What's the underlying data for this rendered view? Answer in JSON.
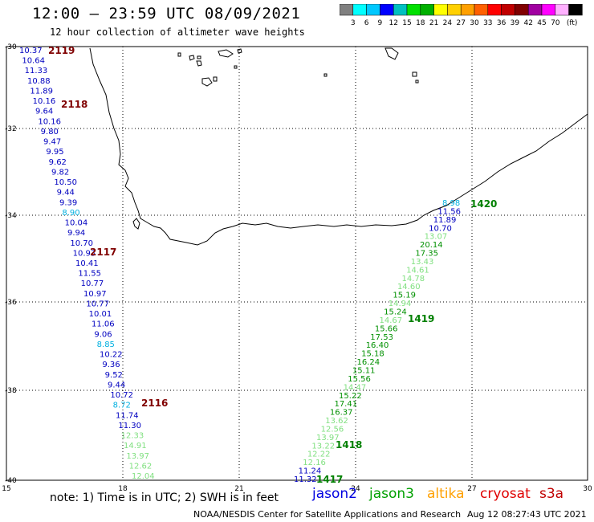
{
  "header": {
    "title": "12:00 — 23:59 UTC 08/09/2021",
    "subtitle": "12 hour collection of altimeter wave heights"
  },
  "color_scale": {
    "unit": "(ft)",
    "colors": [
      "#808080",
      "#00ffff",
      "#00c8ff",
      "#0000ff",
      "#00c0c0",
      "#00e000",
      "#00b000",
      "#ffff00",
      "#ffd000",
      "#ffa000",
      "#ff6000",
      "#ff0000",
      "#c00000",
      "#800000",
      "#a000a0",
      "#ff00ff",
      "#ffb0ff",
      "#000000"
    ],
    "labels": [
      "3",
      "6",
      "9",
      "12",
      "15",
      "18",
      "21",
      "24",
      "27",
      "30",
      "33",
      "36",
      "39",
      "42",
      "45",
      "70"
    ]
  },
  "axes": {
    "lat_labels": [
      "-30",
      "-32",
      "-34",
      "-36",
      "-38",
      "-40"
    ],
    "lon_labels": [
      "15",
      "18",
      "21",
      "24",
      "27",
      "30"
    ]
  },
  "tracks": [
    {
      "id": "jason2-west",
      "points": [
        {
          "v": "10.37",
          "c": "#0000c0"
        },
        {
          "v": "10.64",
          "c": "#0000c0"
        },
        {
          "v": "11.33",
          "c": "#0000c0"
        },
        {
          "v": "10.88",
          "c": "#0000c0"
        },
        {
          "v": "11.89",
          "c": "#0000c0"
        },
        {
          "v": "10.16",
          "c": "#0000c0"
        },
        {
          "v": "9.64",
          "c": "#0000c0"
        },
        {
          "v": "10.16",
          "c": "#0000c0"
        },
        {
          "v": "9.80",
          "c": "#0000c0"
        },
        {
          "v": "9.47",
          "c": "#0000c0"
        },
        {
          "v": "9.95",
          "c": "#0000c0"
        },
        {
          "v": "9.62",
          "c": "#0000c0"
        },
        {
          "v": "9.82",
          "c": "#0000c0"
        },
        {
          "v": "10.50",
          "c": "#0000c0"
        },
        {
          "v": "9.44",
          "c": "#0000c0"
        },
        {
          "v": "9.39",
          "c": "#0000c0"
        },
        {
          "v": "8.90",
          "c": "#00b0e0"
        },
        {
          "v": "10.04",
          "c": "#0000c0"
        },
        {
          "v": "9.94",
          "c": "#0000c0"
        },
        {
          "v": "10.70",
          "c": "#0000c0"
        },
        {
          "v": "10.93",
          "c": "#0000c0"
        },
        {
          "v": "10.41",
          "c": "#0000c0"
        },
        {
          "v": "11.55",
          "c": "#0000c0"
        },
        {
          "v": "10.77",
          "c": "#0000c0"
        },
        {
          "v": "10.97",
          "c": "#0000c0"
        },
        {
          "v": "10.77",
          "c": "#0000c0"
        },
        {
          "v": "10.01",
          "c": "#0000c0"
        },
        {
          "v": "11.06",
          "c": "#0000c0"
        },
        {
          "v": "9.06",
          "c": "#0000c0"
        },
        {
          "v": "8.85",
          "c": "#00b0e0"
        },
        {
          "v": "10.22",
          "c": "#0000c0"
        },
        {
          "v": "9.36",
          "c": "#0000c0"
        },
        {
          "v": "9.52",
          "c": "#0000c0"
        },
        {
          "v": "9.44",
          "c": "#0000c0"
        },
        {
          "v": "10.72",
          "c": "#0000c0"
        },
        {
          "v": "8.72",
          "c": "#00b0e0"
        },
        {
          "v": "11.74",
          "c": "#0000c0"
        },
        {
          "v": "11.30",
          "c": "#0000c0"
        },
        {
          "v": "12.33",
          "c": "#80e080"
        },
        {
          "v": "14.91",
          "c": "#80e080"
        },
        {
          "v": "13.97",
          "c": "#80e080"
        },
        {
          "v": "12.62",
          "c": "#80e080"
        },
        {
          "v": "12.04",
          "c": "#80e080"
        }
      ]
    },
    {
      "id": "jason3-east",
      "points": [
        {
          "v": "8.98",
          "c": "#00b0e0"
        },
        {
          "v": "11.56",
          "c": "#0000c0"
        },
        {
          "v": "11.89",
          "c": "#0000c0"
        },
        {
          "v": "10.70",
          "c": "#0000c0"
        },
        {
          "v": "13.07",
          "c": "#80e080"
        },
        {
          "v": "20.14",
          "c": "#009000"
        },
        {
          "v": "17.35",
          "c": "#009000"
        },
        {
          "v": "13.43",
          "c": "#80e080"
        },
        {
          "v": "14.61",
          "c": "#80e080"
        },
        {
          "v": "14.78",
          "c": "#80e080"
        },
        {
          "v": "14.60",
          "c": "#80e080"
        },
        {
          "v": "15.19",
          "c": "#009000"
        },
        {
          "v": "14.94",
          "c": "#80e080"
        },
        {
          "v": "15.24",
          "c": "#009000"
        },
        {
          "v": "14.67",
          "c": "#80e080"
        },
        {
          "v": "15.66",
          "c": "#009000"
        },
        {
          "v": "17.53",
          "c": "#009000"
        },
        {
          "v": "16.40",
          "c": "#009000"
        },
        {
          "v": "15.18",
          "c": "#009000"
        },
        {
          "v": "16.24",
          "c": "#009000"
        },
        {
          "v": "15.11",
          "c": "#009000"
        },
        {
          "v": "15.56",
          "c": "#009000"
        },
        {
          "v": "14.47",
          "c": "#80e080"
        },
        {
          "v": "15.22",
          "c": "#009000"
        },
        {
          "v": "17.41",
          "c": "#009000"
        },
        {
          "v": "16.37",
          "c": "#009000"
        },
        {
          "v": "13.62",
          "c": "#80e080"
        },
        {
          "v": "12.56",
          "c": "#80e080"
        },
        {
          "v": "13.97",
          "c": "#80e080"
        },
        {
          "v": "13.22",
          "c": "#80e080"
        },
        {
          "v": "12.22",
          "c": "#80e080"
        },
        {
          "v": "12.16",
          "c": "#80e080"
        },
        {
          "v": "11.24",
          "c": "#0000c0"
        },
        {
          "v": "11.32",
          "c": "#0000c0"
        }
      ]
    }
  ],
  "time_labels": [
    {
      "t": "2119",
      "c": "#800000"
    },
    {
      "t": "2118",
      "c": "#800000"
    },
    {
      "t": "2117",
      "c": "#800000"
    },
    {
      "t": "2116",
      "c": "#800000"
    },
    {
      "t": "1420",
      "c": "#008000"
    },
    {
      "t": "1419",
      "c": "#008000"
    },
    {
      "t": "1418",
      "c": "#008000"
    },
    {
      "t": "1417",
      "c": "#008000"
    }
  ],
  "note": "note:  1) Time is in UTC;  2) SWH is in feet",
  "legend": [
    {
      "name": "jason2",
      "color": "#0000e0"
    },
    {
      "name": "jason3",
      "color": "#00a000"
    },
    {
      "name": "altika",
      "color": "#ffa000"
    },
    {
      "name": "cryosat",
      "color": "#e00000"
    },
    {
      "name": "s3a",
      "color": "#c00000"
    }
  ],
  "footer": {
    "credit": "NOAA/NESDIS Center for Satellite Applications and Research",
    "timestamp": "Aug 12 08:27:43 UTC 2021"
  }
}
